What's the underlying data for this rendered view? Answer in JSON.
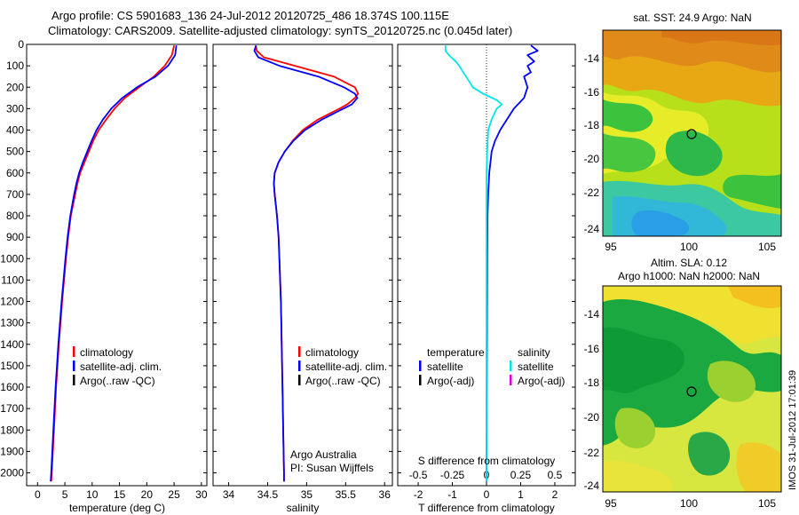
{
  "page": {
    "title_line1": "Argo profile: CS 5901683_136 24-Jul-2012 20120725_486 18.374S 100.115E",
    "title_line2": "Climatology: CARS2009. Satellite-adjusted climatology: synTS_20120725.nc (0.045d later)",
    "side_stamp": "IMOS 31-Jul-2012 17:01:39"
  },
  "colors": {
    "climatology": "#ff0000",
    "satellite": "#0000ff",
    "argo": "#000000",
    "satellite_salinity": "#00e5e5",
    "argo_salinity_adj": "#e000e0"
  },
  "chart_data": [
    {
      "type": "line",
      "id": "temperature",
      "xlabel": "temperature (deg C)",
      "ylabel": "",
      "xlim": [
        -2,
        31
      ],
      "ylim": [
        2060,
        0
      ],
      "xticks": [
        0,
        5,
        10,
        15,
        20,
        25,
        30
      ],
      "yticks": [
        0,
        100,
        200,
        300,
        400,
        500,
        600,
        700,
        800,
        900,
        1000,
        1100,
        1200,
        1300,
        1400,
        1500,
        1600,
        1700,
        1800,
        1900,
        2000
      ],
      "legend": {
        "position": "lower-center",
        "entries": [
          "climatology",
          "satellite-adj. clim.",
          "Argo(..raw -QC)"
        ]
      },
      "series": [
        {
          "name": "climatology",
          "color": "#ff0000",
          "depth": [
            5,
            50,
            100,
            150,
            200,
            250,
            300,
            350,
            400,
            450,
            500,
            550,
            600,
            650,
            700,
            800,
            900,
            1000,
            1200,
            1400,
            1600,
            1800,
            2000,
            2040
          ],
          "values": [
            25.0,
            24.6,
            23.3,
            21.3,
            18.6,
            16.0,
            14.1,
            12.6,
            11.2,
            10.2,
            9.4,
            8.6,
            7.8,
            7.3,
            6.9,
            6.1,
            5.6,
            5.2,
            4.5,
            3.9,
            3.4,
            3.0,
            2.6,
            2.5
          ]
        },
        {
          "name": "satellite-adj. clim.",
          "color": "#0000ff",
          "depth": [
            5,
            50,
            100,
            150,
            200,
            250,
            300,
            350,
            400,
            450,
            500,
            550,
            600,
            650,
            700,
            800,
            900,
            1000,
            1200,
            1400,
            1600,
            1800,
            2000,
            2040
          ],
          "values": [
            25.4,
            25.2,
            23.9,
            21.6,
            18.2,
            15.5,
            13.5,
            12.0,
            10.8,
            9.9,
            9.1,
            8.3,
            7.6,
            7.1,
            6.7,
            6.0,
            5.5,
            5.1,
            4.4,
            3.8,
            3.3,
            2.9,
            2.5,
            2.4
          ]
        }
      ]
    },
    {
      "type": "line",
      "id": "salinity",
      "xlabel": "salinity",
      "ylabel": "",
      "xlim": [
        33.8,
        36.1
      ],
      "ylim": [
        2060,
        0
      ],
      "xticks": [
        34,
        34.5,
        35,
        35.5,
        36
      ],
      "legend": {
        "position": "lower-center",
        "entries": [
          "climatology",
          "satellite-adj. clim.",
          "Argo(..raw -QC)"
        ]
      },
      "annotation": [
        "Argo Australia",
        "PI: Susan Wijffels"
      ],
      "series": [
        {
          "name": "climatology",
          "color": "#ff0000",
          "depth": [
            5,
            30,
            60,
            100,
            150,
            200,
            230,
            250,
            280,
            300,
            350,
            400,
            450,
            500,
            550,
            600,
            650,
            700,
            800,
            900,
            1000,
            1200,
            1400,
            1600,
            1800,
            2000,
            2040
          ],
          "values": [
            34.35,
            34.36,
            34.45,
            34.85,
            35.35,
            35.62,
            35.66,
            35.62,
            35.52,
            35.42,
            35.15,
            34.95,
            34.82,
            34.72,
            34.64,
            34.59,
            34.58,
            34.59,
            34.62,
            34.64,
            34.65,
            34.67,
            34.68,
            34.69,
            34.7,
            34.71,
            34.71
          ]
        },
        {
          "name": "satellite-adj. clim.",
          "color": "#0000ff",
          "depth": [
            5,
            30,
            60,
            100,
            150,
            200,
            230,
            250,
            280,
            300,
            350,
            400,
            450,
            500,
            550,
            600,
            650,
            700,
            800,
            900,
            1000,
            1200,
            1400,
            1600,
            1800,
            2000,
            2040
          ],
          "values": [
            34.35,
            34.33,
            34.38,
            34.65,
            35.15,
            35.48,
            35.62,
            35.65,
            35.58,
            35.47,
            35.2,
            34.98,
            34.83,
            34.72,
            34.64,
            34.59,
            34.58,
            34.59,
            34.62,
            34.64,
            34.65,
            34.67,
            34.68,
            34.69,
            34.7,
            34.71,
            34.71
          ]
        }
      ]
    },
    {
      "type": "line",
      "id": "difference",
      "xlabel": "T difference from climatology",
      "title_inside": "S difference from climatology",
      "xlim": [
        -2.6,
        2.6
      ],
      "ylim": [
        2060,
        0
      ],
      "xticks": [
        -2,
        -1,
        0,
        1,
        2
      ],
      "s_ticks": [
        -0.5,
        -0.25,
        0,
        0.25,
        0.5
      ],
      "s_tick_labels": [
        "-0.5",
        "-0.25",
        "0",
        "0.25",
        "0.5"
      ],
      "legend": {
        "position": "lower-center",
        "temperature_header": "temperature",
        "salinity_header": "salinity",
        "entries": [
          "satellite",
          "Argo(-adj)",
          "satellite",
          "Argo(-adj)"
        ]
      },
      "series": [
        {
          "name": "T satellite",
          "color": "#0000ff",
          "depth": [
            5,
            30,
            50,
            80,
            100,
            130,
            150,
            200,
            250,
            300,
            350,
            400,
            450,
            500,
            600,
            700,
            800,
            1000,
            1500,
            2000,
            2040
          ],
          "values": [
            1.3,
            1.5,
            1.2,
            1.4,
            1.2,
            1.3,
            1.1,
            1.2,
            1.1,
            0.8,
            0.6,
            0.4,
            0.25,
            0.15,
            0.08,
            0.05,
            0.03,
            0.02,
            0.01,
            0.0,
            0.0
          ]
        },
        {
          "name": "S satellite",
          "color": "#00e5e5",
          "depth": [
            5,
            30,
            50,
            80,
            100,
            150,
            200,
            230,
            260,
            280,
            300,
            350,
            400,
            500,
            600,
            800,
            1000,
            1500,
            2000,
            2040
          ],
          "values": [
            -1.2,
            -1.2,
            -1.1,
            -0.9,
            -0.8,
            -0.6,
            -0.4,
            -0.1,
            0.3,
            0.45,
            0.3,
            0.15,
            0.05,
            0.02,
            0.0,
            0.0,
            0.0,
            0.0,
            0.0,
            0.0
          ]
        }
      ]
    }
  ],
  "maps": {
    "sst": {
      "title": "sat. SST: 24.9 Argo: NaN",
      "xticks": [
        "95",
        "100",
        "105"
      ],
      "yticks": [
        "-14",
        "-16",
        "-18",
        "-20",
        "-22",
        "-24"
      ]
    },
    "sla": {
      "title_line1": "Altim. SLA: 0.12",
      "title_line2": "Argo h1000: NaN h2000: NaN",
      "xticks": [
        "95",
        "100",
        "105"
      ],
      "yticks": [
        "-14",
        "-16",
        "-18",
        "-20",
        "-22",
        "-24"
      ]
    }
  }
}
